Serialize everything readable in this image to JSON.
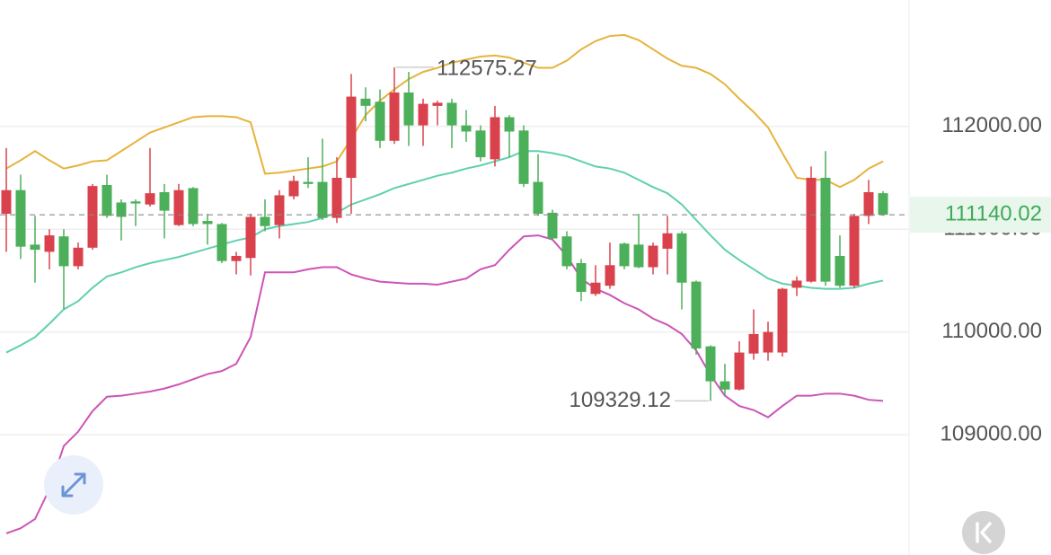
{
  "chart_data": {
    "type": "candlestick",
    "up_color": "#d9424c",
    "down_color": "#4caf5a",
    "open": [
      111150,
      111380,
      110850,
      110780,
      110930,
      110640,
      110820,
      111430,
      111260,
      111270,
      111240,
      111360,
      111040,
      111400,
      111080,
      111050,
      110690,
      110720,
      111120,
      111040,
      111320,
      111460,
      111460,
      111110,
      111500,
      112270,
      112240,
      111860,
      112330,
      112010,
      112200,
      112230,
      112010,
      111960,
      111680,
      112090,
      111960,
      111460,
      111160,
      110930,
      110670,
      110370,
      110450,
      110860,
      110850,
      110630,
      110810,
      110960,
      110490,
      109860,
      109520,
      109440,
      109790,
      109800,
      109800,
      110430,
      110490,
      111500,
      110740,
      110450,
      111130,
      111350
    ],
    "high": [
      111790,
      111530,
      111130,
      111000,
      111000,
      110870,
      111440,
      111530,
      111290,
      111290,
      111790,
      111440,
      111440,
      111410,
      111150,
      111060,
      110780,
      111150,
      111290,
      111380,
      111520,
      111700,
      111880,
      111700,
      112510,
      112380,
      112360,
      112575.27,
      112530,
      112270,
      112250,
      112270,
      112160,
      112010,
      112200,
      112110,
      112010,
      111730,
      111190,
      110980,
      110710,
      110650,
      110870,
      110870,
      111150,
      110870,
      111130,
      110980,
      110500,
      109870,
      109690,
      109910,
      110220,
      110100,
      110430,
      110540,
      111610,
      111760,
      110940,
      111150,
      111480,
      111370
    ],
    "low": [
      110780,
      110710,
      110480,
      110610,
      110220,
      110610,
      110800,
      111110,
      110890,
      111030,
      111220,
      110910,
      111030,
      111030,
      110850,
      110670,
      110560,
      110550,
      110980,
      110910,
      111290,
      111400,
      111090,
      111060,
      111150,
      112050,
      111790,
      111830,
      111810,
      111810,
      112010,
      111790,
      111850,
      111660,
      111610,
      111700,
      111410,
      111130,
      110890,
      110610,
      110300,
      110350,
      110420,
      110610,
      110620,
      110560,
      110560,
      110220,
      109780,
      109329.12,
      109380,
      109430,
      109730,
      109720,
      109760,
      110350,
      110480,
      110450,
      110430,
      110430,
      111050,
      111130
    ],
    "close": [
      111380,
      110830,
      110800,
      110940,
      110640,
      110820,
      111420,
      111130,
      111120,
      111250,
      111350,
      111180,
      111380,
      111050,
      111050,
      110690,
      110740,
      111120,
      111030,
      111330,
      111470,
      111440,
      111110,
      111500,
      112290,
      112200,
      111860,
      112330,
      112010,
      112220,
      112230,
      112010,
      111950,
      111700,
      112090,
      111950,
      111440,
      111150,
      110910,
      110640,
      110390,
      110480,
      110650,
      110640,
      110630,
      110840,
      110960,
      110480,
      109840,
      109520,
      109440,
      109800,
      109980,
      110000,
      110420,
      110500,
      111500,
      110490,
      110450,
      111130,
      111360,
      111140.02
    ],
    "bands": [
      {
        "color": "#e6b33c",
        "values": [
          111590,
          111670,
          111760,
          111670,
          111590,
          111620,
          111660,
          111670,
          111760,
          111850,
          111940,
          111990,
          112040,
          112090,
          112100,
          112100,
          112090,
          112040,
          111540,
          111550,
          111570,
          111590,
          111610,
          111660,
          111880,
          112110,
          112250,
          112360,
          112460,
          112530,
          112570,
          112620,
          112650,
          112680,
          112690,
          112670,
          112620,
          112570,
          112570,
          112640,
          112750,
          112830,
          112880,
          112890,
          112840,
          112750,
          112660,
          112590,
          112570,
          112510,
          112410,
          112270,
          112140,
          111990,
          111740,
          111500,
          111480,
          111480,
          111410,
          111480,
          111590,
          111660
        ]
      },
      {
        "color": "#5fd0b0",
        "values": [
          109800,
          109870,
          109950,
          110080,
          110220,
          110300,
          110430,
          110540,
          110580,
          110630,
          110670,
          110700,
          110730,
          110770,
          110810,
          110850,
          110890,
          110920,
          111000,
          111030,
          111050,
          111070,
          111110,
          111160,
          111240,
          111290,
          111340,
          111400,
          111440,
          111480,
          111520,
          111550,
          111590,
          111620,
          111660,
          111700,
          111760,
          111760,
          111740,
          111710,
          111660,
          111610,
          111590,
          111550,
          111480,
          111410,
          111350,
          111240,
          111090,
          110940,
          110800,
          110700,
          110610,
          110520,
          110470,
          110450,
          110430,
          110420,
          110420,
          110430,
          110470,
          110500
        ]
      },
      {
        "color": "#cc55b5",
        "values": [
          108040,
          108090,
          108180,
          108470,
          108890,
          109030,
          109230,
          109370,
          109380,
          109400,
          109420,
          109450,
          109490,
          109540,
          109590,
          109620,
          109690,
          109950,
          110580,
          110580,
          110580,
          110610,
          110630,
          110630,
          110560,
          110520,
          110490,
          110480,
          110470,
          110470,
          110460,
          110490,
          110520,
          110610,
          110650,
          110800,
          110930,
          110940,
          110900,
          110740,
          110520,
          110420,
          110360,
          110280,
          110220,
          110130,
          110070,
          109980,
          109820,
          109580,
          109380,
          109280,
          109240,
          109170,
          109280,
          109380,
          109380,
          109400,
          109400,
          109380,
          109340,
          109330
        ]
      }
    ],
    "ylim": [
      107830,
      113230
    ],
    "yticks": [
      {
        "value": 109000,
        "label": "109000.00"
      },
      {
        "value": 110000,
        "label": "110000.00"
      },
      {
        "value": 111000,
        "label": "111000.00"
      },
      {
        "value": 112000,
        "label": "112000.00"
      }
    ],
    "grid": true
  }
}
